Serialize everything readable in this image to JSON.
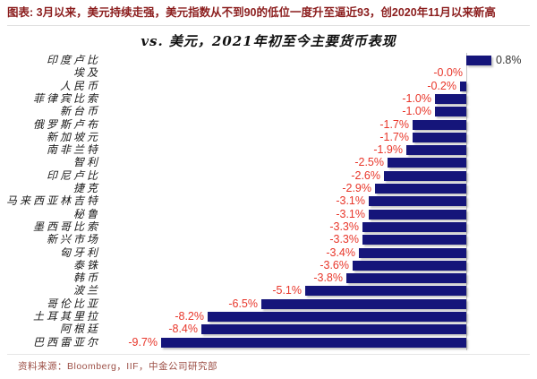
{
  "header": {
    "title": "图表: 3月以来，美元持续走强，美元指数从不到90的低位一度升至逼近93，创2020年11月以来新高"
  },
  "footer": {
    "source": "资料来源：Bloomberg，IIF，中金公司研究部"
  },
  "colors": {
    "bar": "#15157a",
    "negative_label": "#e8362a",
    "positive_label": "#333333",
    "header_title": "#8b1d1d",
    "footer_text": "#9c4f46",
    "axis_line": "#c4c4c4"
  },
  "chart_data": {
    "type": "bar",
    "orientation": "horizontal",
    "title": "vs. 美元，2021年初至今主要货币表现",
    "xlabel": "",
    "ylabel": "",
    "xlim": [
      -10.5,
      1.5
    ],
    "baseline": 0,
    "grid": false,
    "legend": "none",
    "value_label_position": "outside-end",
    "categories": [
      "印度卢比",
      "埃及",
      "人民币",
      "菲律宾比索",
      "新台币",
      "俄罗斯卢布",
      "新加坡元",
      "南非兰特",
      "智利",
      "印尼卢比",
      "捷克",
      "马来西亚林吉特",
      "秘鲁",
      "墨西哥比索",
      "新兴市场",
      "匈牙利",
      "泰铢",
      "韩币",
      "波兰",
      "哥伦比亚",
      "土耳其里拉",
      "阿根廷",
      "巴西雷亚尔"
    ],
    "values": [
      0.8,
      -0.0,
      -0.2,
      -1.0,
      -1.0,
      -1.7,
      -1.7,
      -1.9,
      -2.5,
      -2.6,
      -2.9,
      -3.1,
      -3.1,
      -3.3,
      -3.3,
      -3.4,
      -3.6,
      -3.8,
      -5.1,
      -6.5,
      -8.2,
      -8.4,
      -9.7
    ],
    "value_labels": [
      "0.8%",
      "-0.0%",
      "-0.2%",
      "-1.0%",
      "-1.0%",
      "-1.7%",
      "-1.7%",
      "-1.9%",
      "-2.5%",
      "-2.6%",
      "-2.9%",
      "-3.1%",
      "-3.1%",
      "-3.3%",
      "-3.3%",
      "-3.4%",
      "-3.6%",
      "-3.8%",
      "-5.1%",
      "-6.5%",
      "-8.2%",
      "-8.4%",
      "-9.7%"
    ]
  }
}
